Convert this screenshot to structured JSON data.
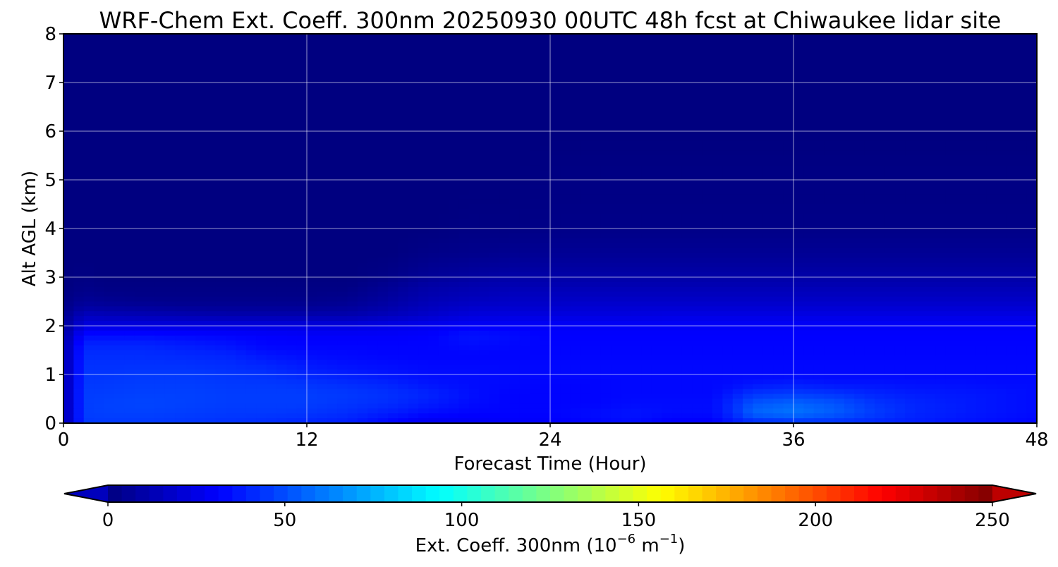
{
  "chart_data": {
    "type": "heatmap",
    "title": "WRF-Chem Ext. Coeff. 300nm  20250930 00UTC 48h fcst at Chiwaukee lidar site",
    "xlabel": "Forecast Time (Hour)",
    "ylabel": "Alt AGL (km)",
    "xlim": [
      0,
      48
    ],
    "ylim": [
      0,
      8
    ],
    "xticks": [
      0,
      12,
      24,
      36,
      48
    ],
    "yticks": [
      0,
      1,
      2,
      3,
      4,
      5,
      6,
      7,
      8
    ],
    "grid": true,
    "colormap": "jet",
    "colorbar": {
      "label_main": "Ext. Coeff. 300nm  (10",
      "label_exp1": "−6",
      "label_mid": " m",
      "label_exp2": "−1",
      "label_end": ")",
      "range": [
        0,
        250
      ],
      "ticks": [
        0,
        50,
        100,
        150,
        200,
        250
      ],
      "extend": "both",
      "placement": "bottom"
    },
    "field_times": [
      0,
      1,
      2,
      4,
      6,
      8,
      10,
      12,
      14,
      16,
      18,
      20,
      22,
      24,
      26,
      28,
      30,
      32,
      33,
      34,
      36,
      38,
      40,
      42,
      44,
      46,
      48
    ],
    "field_altitudes": [
      0,
      0.2,
      0.4,
      0.6,
      0.8,
      1.0,
      1.2,
      1.4,
      1.6,
      1.8,
      2.0,
      2.2,
      2.4,
      2.6,
      2.8,
      3.0,
      3.5,
      4.0,
      5.0,
      6.0,
      7.0,
      8.0
    ],
    "field_values": [
      [
        10,
        45,
        45,
        45,
        44,
        43,
        42,
        40,
        38,
        32,
        26,
        28,
        30,
        30,
        32,
        34,
        30,
        30,
        36,
        40,
        42,
        42,
        40,
        38,
        36,
        34,
        32
      ],
      [
        10,
        46,
        47,
        47,
        46,
        45,
        45,
        44,
        42,
        38,
        34,
        32,
        32,
        32,
        34,
        36,
        34,
        34,
        42,
        56,
        60,
        54,
        46,
        40,
        38,
        36,
        34
      ],
      [
        10,
        46,
        47,
        48,
        47,
        46,
        46,
        46,
        44,
        42,
        38,
        34,
        32,
        32,
        32,
        34,
        34,
        34,
        42,
        52,
        56,
        52,
        44,
        40,
        38,
        36,
        34
      ],
      [
        10,
        46,
        46,
        47,
        47,
        46,
        46,
        46,
        45,
        43,
        40,
        35,
        32,
        32,
        32,
        33,
        33,
        33,
        38,
        44,
        46,
        44,
        40,
        38,
        37,
        36,
        34
      ],
      [
        10,
        45,
        45,
        46,
        46,
        45,
        45,
        44,
        42,
        40,
        36,
        34,
        33,
        32,
        32,
        33,
        33,
        33,
        34,
        36,
        38,
        36,
        36,
        35,
        35,
        34,
        34
      ],
      [
        10,
        44,
        44,
        45,
        45,
        44,
        43,
        40,
        38,
        36,
        34,
        34,
        33,
        33,
        33,
        33,
        33,
        33,
        33,
        33,
        33,
        33,
        33,
        33,
        33,
        33,
        33
      ],
      [
        10,
        43,
        43,
        43,
        43,
        42,
        40,
        37,
        35,
        34,
        33,
        33,
        33,
        33,
        33,
        33,
        33,
        33,
        33,
        33,
        33,
        33,
        33,
        33,
        33,
        33,
        33
      ],
      [
        10,
        42,
        42,
        42,
        41,
        40,
        36,
        34,
        33,
        32,
        32,
        32,
        32,
        32,
        32,
        32,
        32,
        32,
        32,
        32,
        32,
        32,
        32,
        32,
        32,
        32,
        32
      ],
      [
        10,
        40,
        40,
        40,
        38,
        36,
        32,
        32,
        32,
        32,
        32,
        34,
        33,
        32,
        32,
        32,
        32,
        32,
        32,
        32,
        32,
        32,
        32,
        32,
        32,
        32,
        32
      ],
      [
        8,
        34,
        34,
        34,
        33,
        32,
        31,
        30,
        30,
        30,
        31,
        36,
        34,
        31,
        31,
        31,
        31,
        31,
        31,
        31,
        31,
        31,
        31,
        31,
        31,
        31,
        31
      ],
      [
        6,
        24,
        24,
        24,
        24,
        24,
        24,
        24,
        24,
        26,
        28,
        30,
        30,
        30,
        30,
        30,
        30,
        30,
        30,
        30,
        30,
        30,
        30,
        30,
        30,
        30,
        30
      ],
      [
        4,
        16,
        15,
        14,
        13,
        12,
        12,
        12,
        12,
        15,
        19,
        23,
        24,
        24,
        24,
        24,
        25,
        25,
        25,
        25,
        25,
        25,
        25,
        25,
        25,
        25,
        25
      ],
      [
        2,
        8,
        7,
        6,
        5,
        5,
        5,
        5,
        6,
        10,
        15,
        18,
        19,
        19,
        20,
        20,
        20,
        20,
        20,
        20,
        20,
        20,
        20,
        20,
        20,
        20,
        20
      ],
      [
        1,
        4,
        3,
        2,
        2,
        2,
        2,
        2,
        3,
        7,
        12,
        14,
        16,
        16,
        16,
        16,
        16,
        16,
        16,
        16,
        16,
        16,
        16,
        16,
        16,
        16,
        16
      ],
      [
        0,
        2,
        1,
        1,
        1,
        1,
        1,
        1,
        1,
        5,
        10,
        12,
        13,
        13,
        13,
        13,
        13,
        13,
        13,
        13,
        13,
        13,
        13,
        13,
        13,
        13,
        13
      ],
      [
        0,
        1,
        0,
        0,
        0,
        0,
        0,
        0,
        0,
        2,
        6,
        8,
        10,
        10,
        10,
        10,
        10,
        10,
        10,
        10,
        10,
        10,
        10,
        10,
        10,
        10,
        10
      ],
      [
        0,
        0,
        0,
        0,
        0,
        0,
        0,
        0,
        0,
        0,
        2,
        3,
        4,
        5,
        5,
        5,
        5,
        5,
        5,
        5,
        5,
        5,
        5,
        5,
        5,
        5,
        5
      ],
      [
        0,
        0,
        0,
        0,
        0,
        0,
        0,
        0,
        0,
        0,
        0,
        1,
        1,
        2,
        2,
        2,
        2,
        2,
        2,
        2,
        2,
        2,
        2,
        2,
        2,
        2,
        2
      ],
      [
        0,
        0,
        0,
        0,
        0,
        0,
        0,
        0,
        0,
        0,
        0,
        0,
        0,
        1,
        1,
        1,
        1,
        1,
        1,
        1,
        1,
        1,
        1,
        1,
        1,
        1,
        1
      ],
      [
        0,
        0,
        0,
        0,
        0,
        0,
        0,
        0,
        0,
        0,
        0,
        0,
        0,
        0,
        0,
        0,
        0,
        0,
        0,
        0,
        0,
        0,
        0,
        0,
        0,
        0,
        0
      ],
      [
        0,
        0,
        0,
        0,
        0,
        0,
        0,
        0,
        0,
        0,
        0,
        0,
        0,
        0,
        0,
        0,
        0,
        0,
        0,
        0,
        0,
        0,
        0,
        0,
        0,
        0,
        0
      ],
      [
        0,
        0,
        0,
        0,
        0,
        0,
        0,
        0,
        0,
        0,
        0,
        0,
        0,
        0,
        0,
        0,
        0,
        0,
        0,
        0,
        0,
        0,
        0,
        0,
        0,
        0,
        0
      ]
    ]
  }
}
